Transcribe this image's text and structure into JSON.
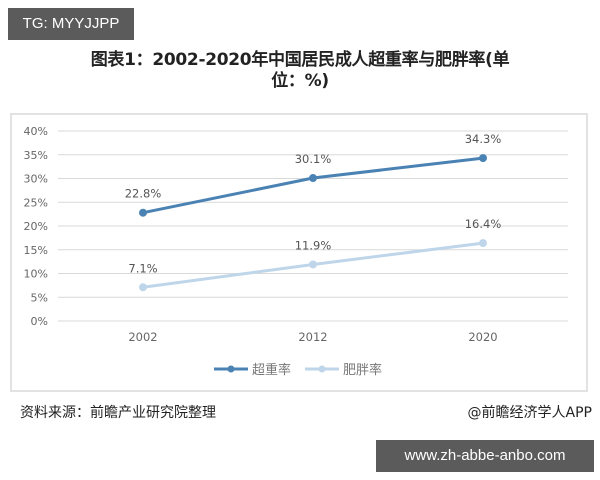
{
  "watermark_tag": "TG: MYYJJPP",
  "title": "图表1：2002-2020年中国居民成人超重率与肥胖率(单位：%)",
  "title_line1": "图表1：2002-2020年中国居民成人超重率与肥胖率(单",
  "title_line2": "位：%)",
  "source": "资料来源：前瞻产业研究院整理",
  "credit": "@前瞻经济学人APP",
  "url_banner": "www.zh-abbe-anbo.com",
  "colors": {
    "overweight": "#4a82b4",
    "obese": "#bfd6ea",
    "grid": "#d9d9d9",
    "axis_text": "#666666"
  },
  "chart_data": {
    "type": "line",
    "title": "图表1：2002-2020年中国居民成人超重率与肥胖率(单位：%)",
    "xlabel": "",
    "ylabel": "",
    "categories": [
      "2002",
      "2012",
      "2020"
    ],
    "series": [
      {
        "name": "超重率",
        "values": [
          22.8,
          30.1,
          34.3
        ],
        "labels": [
          "22.8%",
          "30.1%",
          "34.3%"
        ],
        "color": "#4a82b4"
      },
      {
        "name": "肥胖率",
        "values": [
          7.1,
          11.9,
          16.4
        ],
        "labels": [
          "7.1%",
          "11.9%",
          "16.4%"
        ],
        "color": "#bfd6ea"
      }
    ],
    "yticks": [
      "0%",
      "5%",
      "10%",
      "15%",
      "20%",
      "25%",
      "30%",
      "35%",
      "40%"
    ],
    "ylim": [
      0,
      40
    ],
    "grid": true,
    "legend_position": "bottom"
  }
}
